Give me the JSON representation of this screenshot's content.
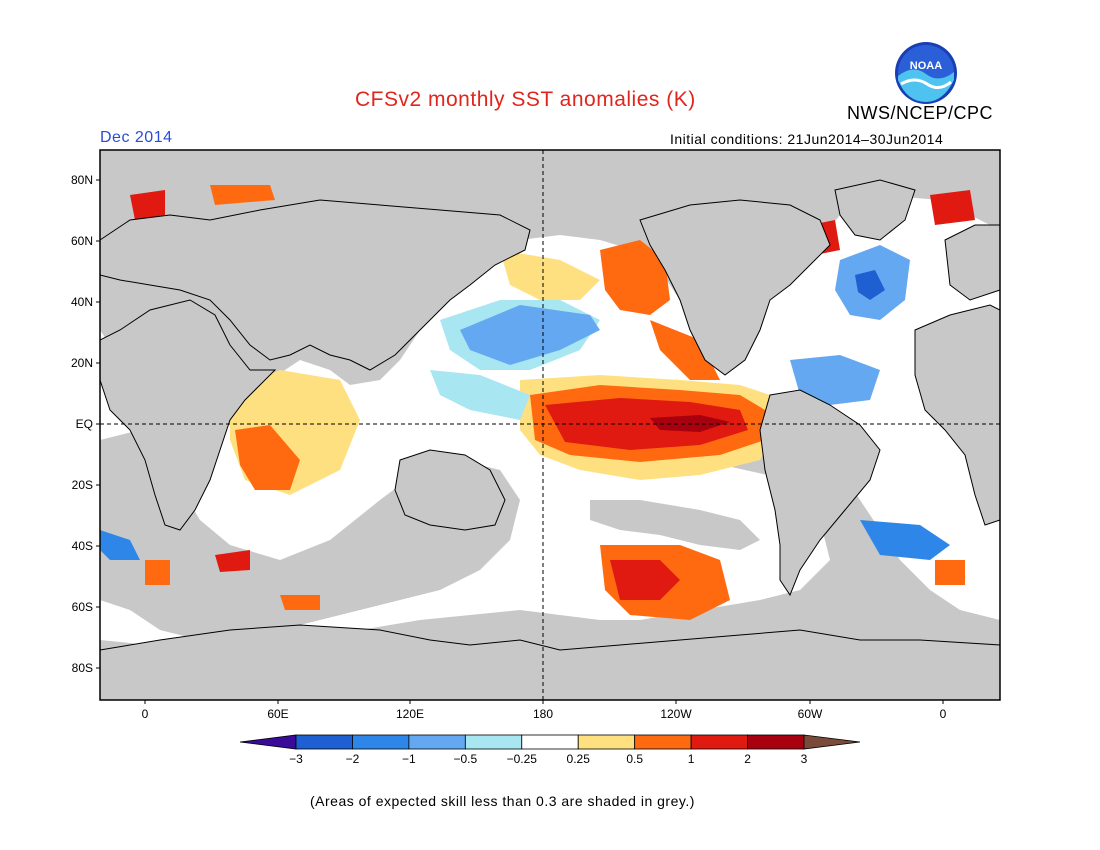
{
  "header": {
    "title": "CFSv2 monthly SST anomalies (K)",
    "agency": "NWS/NCEP/CPC",
    "period": "Dec 2014",
    "initial_conditions": "Initial conditions: 21Jun2014–30Jun2014"
  },
  "logo": {
    "text": "NOAA",
    "icon": "noaa-logo-icon"
  },
  "map": {
    "lat_labels": [
      "80N",
      "60N",
      "40N",
      "20N",
      "EQ",
      "20S",
      "40S",
      "60S",
      "80S"
    ],
    "lon_labels": [
      "0",
      "60E",
      "120E",
      "180",
      "120W",
      "60W",
      "0"
    ],
    "land_color": "#c8c8c8",
    "reference_lines": [
      "EQ",
      "180"
    ]
  },
  "colorbar": {
    "ticks": [
      "−3",
      "−2",
      "−1",
      "−0.5",
      "−0.25",
      "0.25",
      "0.5",
      "1",
      "2",
      "3"
    ],
    "colors": [
      "#3a0a99",
      "#1e5fd2",
      "#2e86e8",
      "#63a8f0",
      "#a8e6f2",
      "#ffffff",
      "#ffe080",
      "#ff6a10",
      "#e01a10",
      "#a8000e",
      "#7a4a3a"
    ]
  },
  "footnote": "(Areas of expected skill less than 0.3 are shaded in grey.)"
}
